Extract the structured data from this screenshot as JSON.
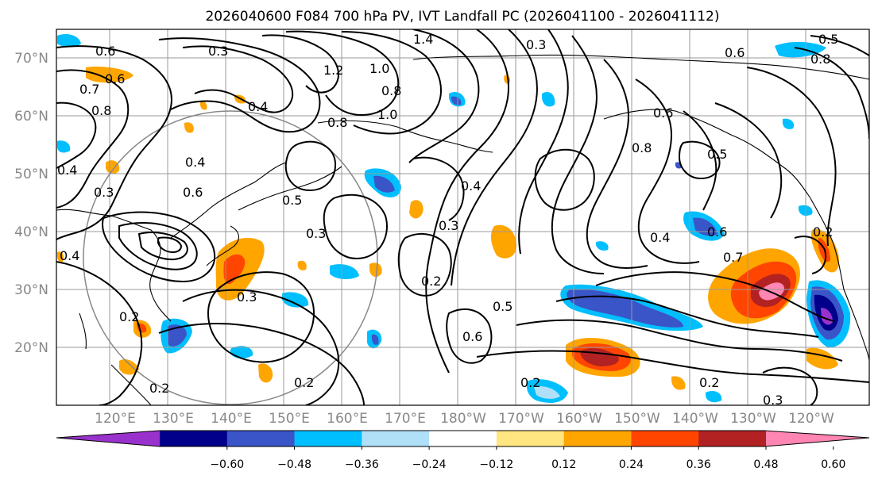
{
  "title": "2026040600 F084 700 hPa PV, IVT Landfall PC (2026041100 - 2026041112)",
  "lat_labels": [
    "70°N",
    "60°N",
    "50°N",
    "40°N",
    "30°N",
    "20°N"
  ],
  "lon_labels": [
    "120°E",
    "130°E",
    "140°E",
    "150°E",
    "160°E",
    "170°E",
    "180°W",
    "170°W",
    "160°W",
    "150°W",
    "140°W",
    "130°W",
    "120°W"
  ],
  "colorbar": {
    "ticks": [
      "−0.60",
      "−0.48",
      "−0.36",
      "−0.24",
      "−0.12",
      "0.12",
      "0.24",
      "0.36",
      "0.48",
      "0.60"
    ],
    "colors": [
      "#9932cc",
      "#00008b",
      "#3a55c8",
      "#00bfff",
      "#b0e0f8",
      "#ffffff",
      "#ffe680",
      "#ffa500",
      "#ff4500",
      "#b22222",
      "#ff85b3"
    ]
  },
  "contour_labels": [
    "0.6",
    "0.6",
    "0.7",
    "0.8",
    "0.4",
    "0.3",
    "0.4",
    "1.4",
    "1.2",
    "1.0",
    "0.8",
    "1.0",
    "0.8",
    "0.3",
    "0.4",
    "0.6",
    "0.8",
    "0.5",
    "0.6",
    "0.5",
    "0.3",
    "0.4",
    "0.3",
    "0.6",
    "0.8",
    "0.5",
    "0.3",
    "0.4",
    "0.6",
    "0.7",
    "0.2",
    "0.3",
    "0.2",
    "0.2",
    "0.5",
    "0.6",
    "0.2",
    "0.2",
    "0.2",
    "0.3",
    "0.2",
    "0.4"
  ]
}
